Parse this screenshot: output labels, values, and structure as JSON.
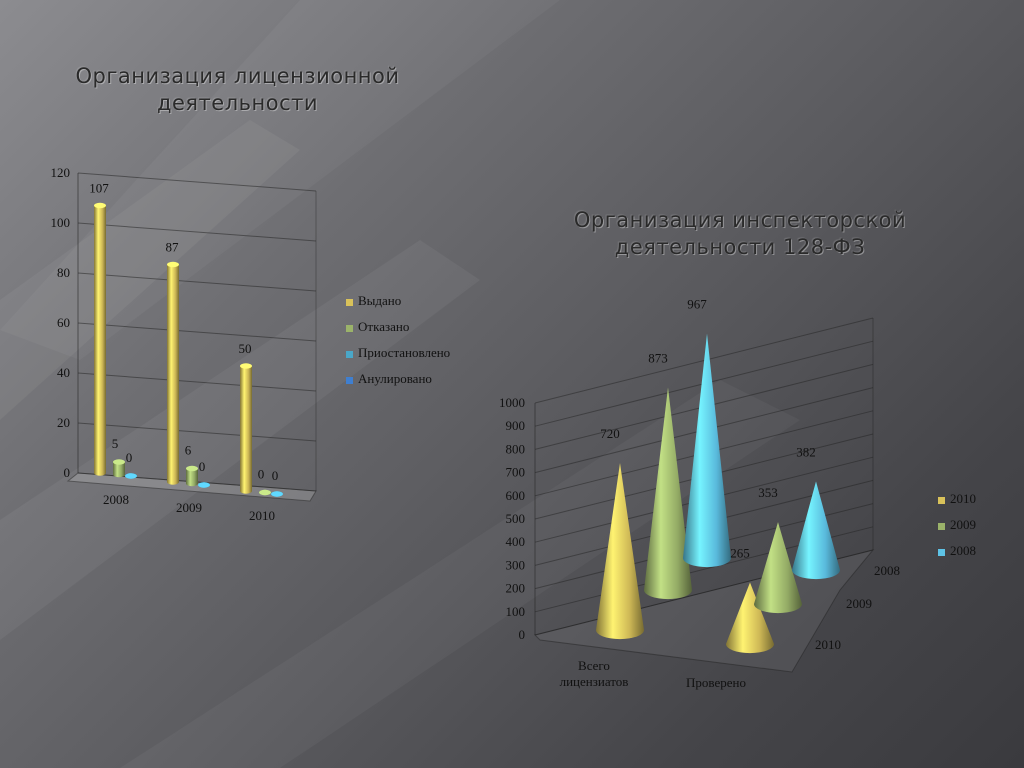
{
  "slide": {
    "title_left": "Организация лицензионной деятельности",
    "title_right": "Организация инспекторской деятельности 128-ФЗ"
  },
  "colors": {
    "gold": "#d9c25a",
    "green": "#9bb36a",
    "teal": "#4aa7c8",
    "blue": "#3f7fd0",
    "cyan": "#5ec3e6"
  },
  "chart_data": [
    {
      "type": "bar",
      "categories": [
        "2008",
        "2009",
        "2010"
      ],
      "series": [
        {
          "name": "Выдано",
          "values": [
            107,
            87,
            50
          ],
          "color": "#d9c25a"
        },
        {
          "name": "Отказано",
          "values": [
            5,
            6,
            0
          ],
          "color": "#9bb36a"
        },
        {
          "name": "Приостановлено",
          "values": [
            0,
            0,
            0
          ],
          "color": "#4aa7c8"
        },
        {
          "name": "Анулировано",
          "values": [
            null,
            null,
            null
          ],
          "color": "#3f7fd0"
        }
      ],
      "data_labels": [
        [
          "107",
          "5",
          "0"
        ],
        [
          "87",
          "6",
          "0"
        ],
        [
          "50",
          "0",
          "0"
        ]
      ],
      "yticks": [
        "0",
        "20",
        "40",
        "60",
        "80",
        "100",
        "120"
      ],
      "ylim": [
        0,
        120
      ],
      "legend": "right"
    },
    {
      "type": "bar",
      "subtype": "3d-cone",
      "categories": [
        "Всего лицензиатов",
        "Проверено"
      ],
      "category_lines": [
        [
          "Всего",
          "лицензиатов"
        ],
        [
          "Проверено"
        ]
      ],
      "depth_categories": [
        "2008",
        "2009",
        "2010"
      ],
      "series": [
        {
          "name": "2010",
          "values": [
            720,
            265
          ],
          "color": "#d9c25a"
        },
        {
          "name": "2009",
          "values": [
            873,
            353
          ],
          "color": "#9bb36a"
        },
        {
          "name": "2008",
          "values": [
            967,
            382
          ],
          "color": "#5ec3e6"
        }
      ],
      "yticks": [
        "0",
        "100",
        "200",
        "300",
        "400",
        "500",
        "600",
        "700",
        "800",
        "900",
        "1000"
      ],
      "ylim": [
        0,
        1000
      ],
      "legend": "right"
    }
  ]
}
